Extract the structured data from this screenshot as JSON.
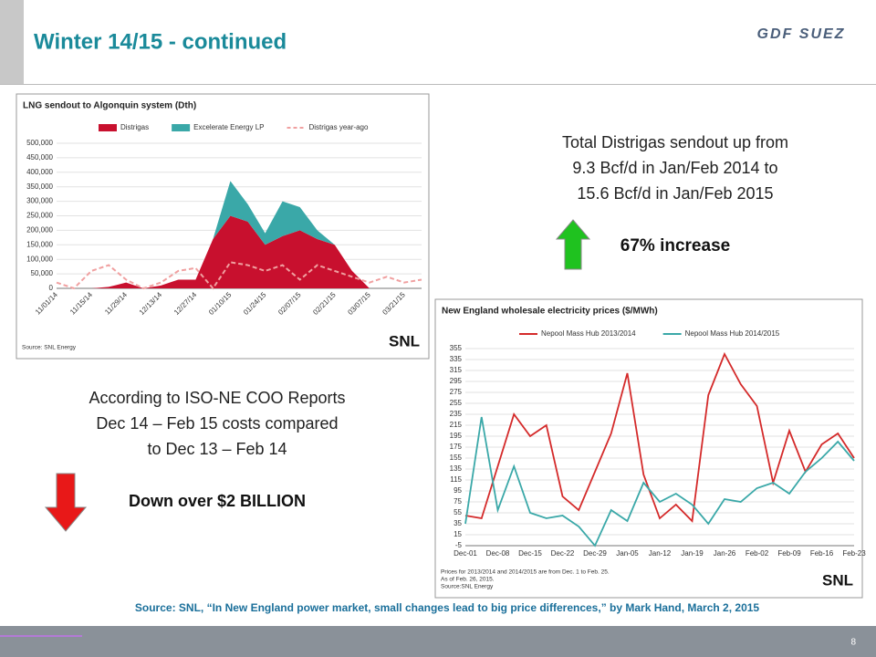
{
  "slide": {
    "title": "Winter 14/15 - continued",
    "logo": "GDF SUEZ",
    "right_text": [
      "Total Distrigas sendout up from",
      "9.3 Bcf/d in Jan/Feb 2014 to",
      "15.6 Bcf/d in Jan/Feb 2015"
    ],
    "increase": "67% increase",
    "left_text": [
      "According to ISO-NE COO Reports",
      "Dec 14 – Feb 15 costs compared",
      "to Dec 13 – Feb 14"
    ],
    "decrease": "Down over $2 BILLION",
    "source": "Source: SNL, “In New England power market, small changes lead to big price differences,” by Mark Hand, March 2, 2015",
    "page": "8"
  },
  "chart_data": [
    {
      "type": "area",
      "title": "LNG sendout to Algonquin system (Dth)",
      "note": [
        "Source: SNL Energy"
      ],
      "brand": "SNL",
      "categories": [
        "11/01/14",
        null,
        "11/15/14",
        null,
        "11/29/14",
        null,
        "12/13/14",
        null,
        "12/27/14",
        null,
        "01/10/15",
        null,
        "01/24/15",
        null,
        "02/07/15",
        null,
        "02/21/15",
        null,
        "03/07/15",
        null,
        "03/21/15",
        null
      ],
      "series": [
        {
          "name": "Distrigas",
          "color": "#c8102e",
          "values": [
            0,
            0,
            0,
            5000,
            20000,
            0,
            10000,
            30000,
            30000,
            170000,
            250000,
            230000,
            150000,
            180000,
            200000,
            170000,
            150000,
            60000,
            0,
            0,
            0,
            0
          ]
        },
        {
          "name": "Excelerate Energy LP",
          "color": "#3aa8a8",
          "values": [
            0,
            0,
            0,
            0,
            0,
            0,
            0,
            0,
            0,
            0,
            120000,
            60000,
            40000,
            120000,
            80000,
            30000,
            0,
            0,
            0,
            0,
            0,
            0
          ]
        },
        {
          "name": "Distrigas year-ago",
          "color": "#f0a0a0",
          "dash": true,
          "values": [
            20000,
            0,
            60000,
            80000,
            30000,
            0,
            20000,
            60000,
            70000,
            0,
            90000,
            80000,
            60000,
            80000,
            30000,
            80000,
            60000,
            40000,
            20000,
            40000,
            20000,
            30000
          ]
        }
      ],
      "ylim": [
        0,
        500000
      ],
      "yticks": [
        0,
        {
          "value": 50000,
          "label": "50,000"
        },
        {
          "value": 100000,
          "label": "100,000"
        },
        {
          "value": 150000,
          "label": "150,000"
        },
        {
          "value": 200000,
          "label": "200,000"
        },
        {
          "value": 250000,
          "label": "250,000"
        },
        {
          "value": 300000,
          "label": "300,000"
        },
        {
          "value": 350000,
          "label": "350,000"
        },
        {
          "value": 400000,
          "label": "400,000"
        },
        {
          "value": 450000,
          "label": "450,000"
        },
        {
          "value": 500000,
          "label": "500,000"
        }
      ]
    },
    {
      "type": "line",
      "title": "New England wholesale electricity prices ($/MWh)",
      "note": [
        "Prices for 2013/2014 and 2014/2015 are from Dec. 1 to Feb. 25.",
        "As of Feb. 26, 2015.",
        "Source:SNL Energy"
      ],
      "brand": "SNL",
      "categories": [
        "Dec-01",
        null,
        "Dec-08",
        null,
        "Dec-15",
        null,
        "Dec-22",
        null,
        "Dec-29",
        null,
        "Jan-05",
        null,
        "Jan-12",
        null,
        "Jan-19",
        null,
        "Jan-26",
        null,
        "Feb-02",
        null,
        "Feb-09",
        null,
        "Feb-16",
        null,
        "Feb-23"
      ],
      "series": [
        {
          "name": "Nepool Mass Hub 2013/2014",
          "color": "#d42a2a",
          "values": [
            50,
            45,
            140,
            235,
            195,
            215,
            85,
            60,
            130,
            200,
            310,
            125,
            45,
            70,
            40,
            270,
            345,
            290,
            250,
            110,
            205,
            130,
            180,
            200,
            155
          ]
        },
        {
          "name": "Nepool Mass Hub 2014/2015",
          "color": "#3aa8a8",
          "values": [
            35,
            230,
            60,
            140,
            55,
            45,
            50,
            30,
            -5,
            60,
            40,
            110,
            75,
            90,
            70,
            35,
            80,
            75,
            100,
            110,
            90,
            130,
            155,
            185,
            150
          ]
        }
      ],
      "ylim": [
        -5,
        355
      ],
      "yticks": [
        -5,
        15,
        35,
        55,
        75,
        95,
        115,
        135,
        155,
        175,
        195,
        215,
        235,
        255,
        275,
        295,
        315,
        335,
        355
      ]
    }
  ]
}
